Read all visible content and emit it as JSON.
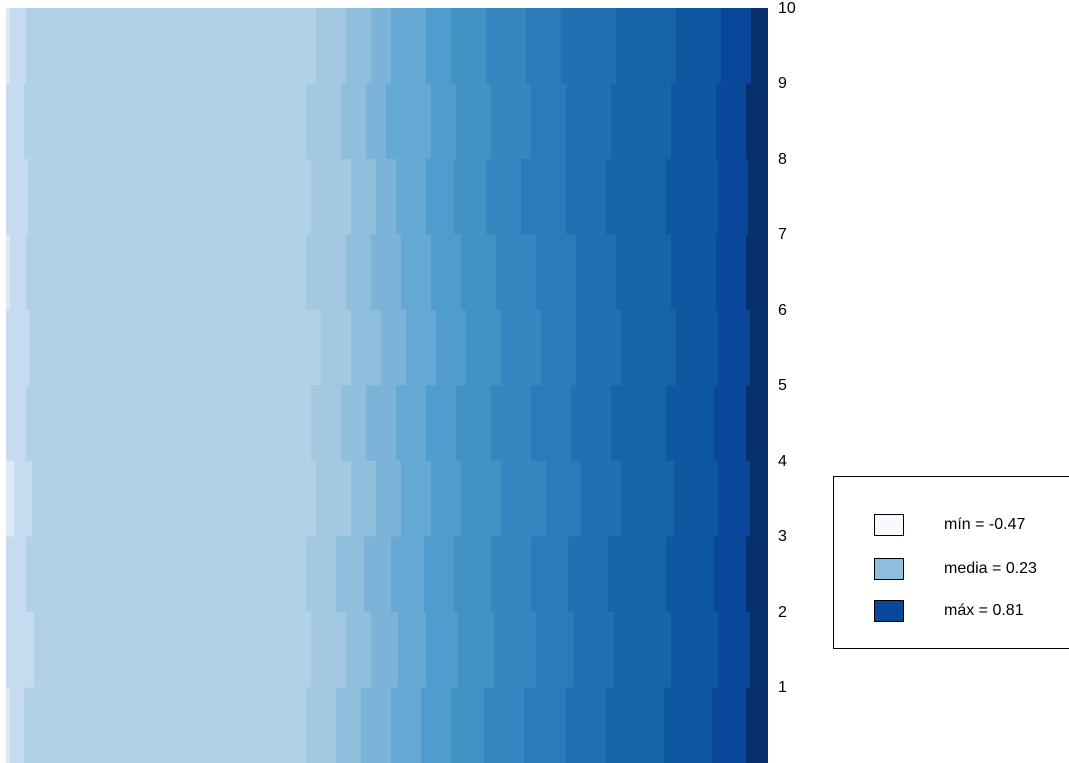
{
  "chart_data": {
    "type": "heatmap",
    "title": "",
    "xlabel": "",
    "ylabel": "",
    "y_categories": [
      "1",
      "2",
      "3",
      "4",
      "5",
      "6",
      "7",
      "8",
      "9",
      "10"
    ],
    "color_scale": {
      "palette": "Blues",
      "low_color": "#f7fbff",
      "mid_color": "#7fb5d9",
      "high_color": "#08479a"
    },
    "legend": {
      "position": "right",
      "entries": [
        {
          "label": "mín = -0.47",
          "value": -0.47,
          "color": "#f7fbff"
        },
        {
          "label": "media = 0.23",
          "value": 0.23,
          "color": "#8cbfdd"
        },
        {
          "label": "máx = 0.81",
          "value": 0.81,
          "color": "#08479a"
        }
      ]
    }
  }
}
